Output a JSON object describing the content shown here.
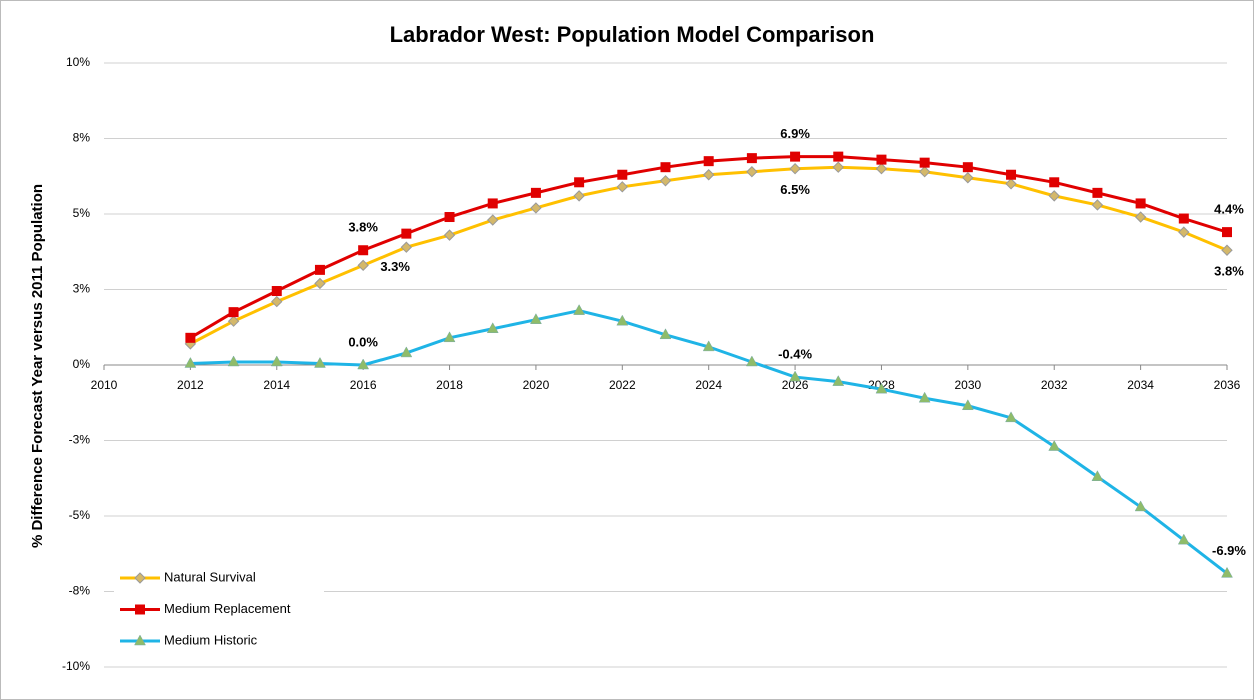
{
  "chart_data": {
    "type": "line",
    "title": "Labrador West: Population Model Comparison",
    "y_label": "% Difference Forecast Year versus 2011 Population",
    "x": [
      2012,
      2013,
      2014,
      2015,
      2016,
      2017,
      2018,
      2019,
      2020,
      2021,
      2022,
      2023,
      2024,
      2025,
      2026,
      2027,
      2028,
      2029,
      2030,
      2031,
      2032,
      2033,
      2034,
      2035,
      2036
    ],
    "series": [
      {
        "name": "Natural Survival",
        "color": "#FFC000",
        "marker": "diamond",
        "values": [
          0.7,
          1.45,
          2.1,
          2.7,
          3.3,
          3.9,
          4.3,
          4.8,
          5.2,
          5.6,
          5.9,
          6.1,
          6.3,
          6.4,
          6.5,
          6.55,
          6.5,
          6.4,
          6.2,
          6.0,
          5.6,
          5.3,
          4.9,
          4.4,
          3.8
        ],
        "value_labels": [
          null,
          null,
          null,
          null,
          "3.3%",
          null,
          null,
          null,
          null,
          null,
          null,
          null,
          null,
          null,
          "6.5%",
          null,
          null,
          null,
          null,
          null,
          null,
          null,
          null,
          null,
          "3.8%"
        ]
      },
      {
        "name": "Medium Replacement",
        "color": "#E00000",
        "marker": "square",
        "values": [
          0.9,
          1.75,
          2.45,
          3.15,
          3.8,
          4.35,
          4.9,
          5.35,
          5.7,
          6.05,
          6.3,
          6.55,
          6.75,
          6.85,
          6.9,
          6.9,
          6.8,
          6.7,
          6.55,
          6.3,
          6.05,
          5.7,
          5.35,
          4.85,
          4.4
        ],
        "value_labels": [
          null,
          null,
          null,
          null,
          "3.8%",
          null,
          null,
          null,
          null,
          null,
          null,
          null,
          null,
          null,
          "6.9%",
          null,
          null,
          null,
          null,
          null,
          null,
          null,
          null,
          null,
          "4.4%"
        ]
      },
      {
        "name": "Medium Historic",
        "color": "#1FB4E6",
        "marker": "triangle",
        "values": [
          0.05,
          0.1,
          0.1,
          0.05,
          0.0,
          0.4,
          0.9,
          1.2,
          1.5,
          1.8,
          1.45,
          1.0,
          0.6,
          0.1,
          -0.4,
          -0.55,
          -0.8,
          -1.1,
          -1.35,
          -1.75,
          -2.7,
          -3.7,
          -4.7,
          -5.8,
          -6.9
        ],
        "value_labels": [
          null,
          null,
          null,
          null,
          "0.0%",
          null,
          null,
          null,
          null,
          null,
          null,
          null,
          null,
          null,
          "-0.4%",
          null,
          null,
          null,
          null,
          null,
          null,
          null,
          null,
          null,
          "-6.9%"
        ]
      }
    ],
    "xlim": [
      2010,
      2036
    ],
    "xticks": [
      2010,
      2012,
      2014,
      2016,
      2018,
      2020,
      2022,
      2024,
      2026,
      2028,
      2030,
      2032,
      2034,
      2036
    ],
    "ylim": [
      -10,
      10
    ],
    "yticks": [
      {
        "value": -10,
        "label": "-10%"
      },
      {
        "value": -7.5,
        "label": "-8%"
      },
      {
        "value": -5,
        "label": "-5%"
      },
      {
        "value": -2.5,
        "label": "-3%"
      },
      {
        "value": 0,
        "label": "0%"
      },
      {
        "value": 2.5,
        "label": "3%"
      },
      {
        "value": 5,
        "label": "5%"
      },
      {
        "value": 7.5,
        "label": "8%"
      },
      {
        "value": 10,
        "label": "10%"
      }
    ],
    "grid": true,
    "legend": "lower left"
  }
}
